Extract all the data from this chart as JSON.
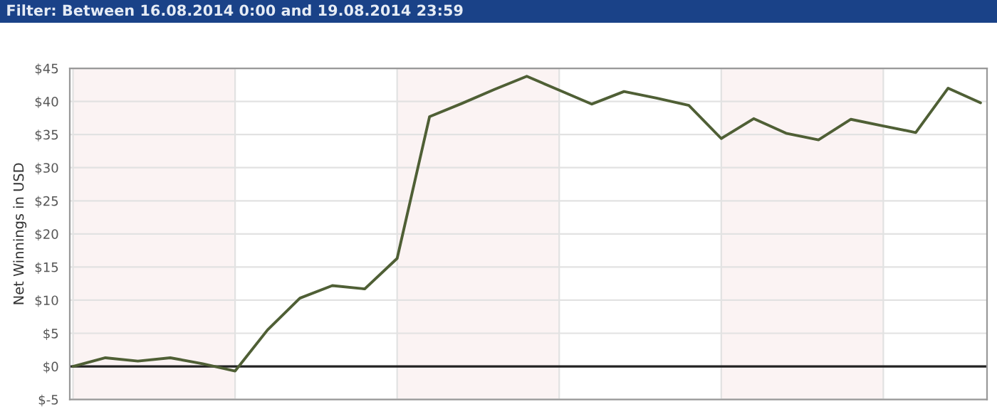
{
  "chart_data": {
    "type": "line",
    "title": "Filter: Between 16.08.2014 0:00 and 19.08.2014 23:59",
    "ylabel": "Net Winnings in USD",
    "categories": [
      null,
      null,
      null,
      null,
      null,
      null,
      null,
      null,
      null,
      null,
      null,
      null,
      null,
      null,
      null,
      null,
      null,
      null,
      null,
      null,
      null,
      null,
      null,
      null,
      null,
      null,
      null,
      null,
      null
    ],
    "series": [
      {
        "color": "#4f5f35",
        "values": [
          0,
          1.3,
          0.8,
          1.3,
          0.4,
          -0.7,
          5.5,
          10.3,
          12.2,
          11.7,
          16.3,
          37.7,
          39.7,
          41.8,
          43.8,
          41.7,
          39.6,
          41.5,
          40.5,
          39.4,
          34.4,
          37.4,
          35.2,
          34.2,
          37.3,
          36.3,
          35.3,
          42,
          39.8
        ]
      }
    ],
    "ylim": [
      -5,
      45
    ],
    "yticks": [
      {
        "value": -5,
        "label": "$-5"
      },
      {
        "value": 0,
        "label": "$0"
      },
      {
        "value": 5,
        "label": "$5"
      },
      {
        "value": 10,
        "label": "$10"
      },
      {
        "value": 15,
        "label": "$15"
      },
      {
        "value": 20,
        "label": "$20"
      },
      {
        "value": 25,
        "label": "$25"
      },
      {
        "value": 30,
        "label": "$30"
      },
      {
        "value": 35,
        "label": "$35"
      },
      {
        "value": 40,
        "label": "$40"
      },
      {
        "value": 45,
        "label": "$45"
      }
    ],
    "grid": "y",
    "marker": "none",
    "line_style": "solid",
    "ref_lines": [
      {
        "axis": "y",
        "value": 0,
        "color": "#222222"
      }
    ]
  }
}
